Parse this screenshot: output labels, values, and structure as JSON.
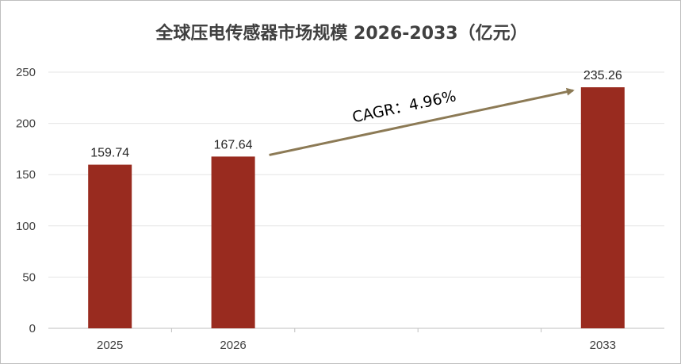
{
  "chart_data": {
    "type": "bar",
    "title": "全球压电传感器市场规模 2026-2033（亿元）",
    "categories": [
      "2025",
      "2026",
      "",
      "",
      "2033"
    ],
    "values": [
      159.74,
      167.64,
      null,
      null,
      235.26
    ],
    "data_labels": [
      "159.74",
      "167.64",
      "",
      "",
      "235.26"
    ],
    "ylim": [
      0,
      250
    ],
    "yticks": [
      0,
      50,
      100,
      150,
      200,
      250
    ],
    "xlabel": "",
    "ylabel": "",
    "grid": true,
    "legend": "none",
    "annotation": {
      "text": "CAGR：4.96%",
      "from_category_index": 1,
      "to_category_index": 4
    },
    "colors": {
      "bar": "#992b1f",
      "arrow": "#8c7a55",
      "grid": "#e6e6e6",
      "axis": "#bfbfbf"
    }
  }
}
